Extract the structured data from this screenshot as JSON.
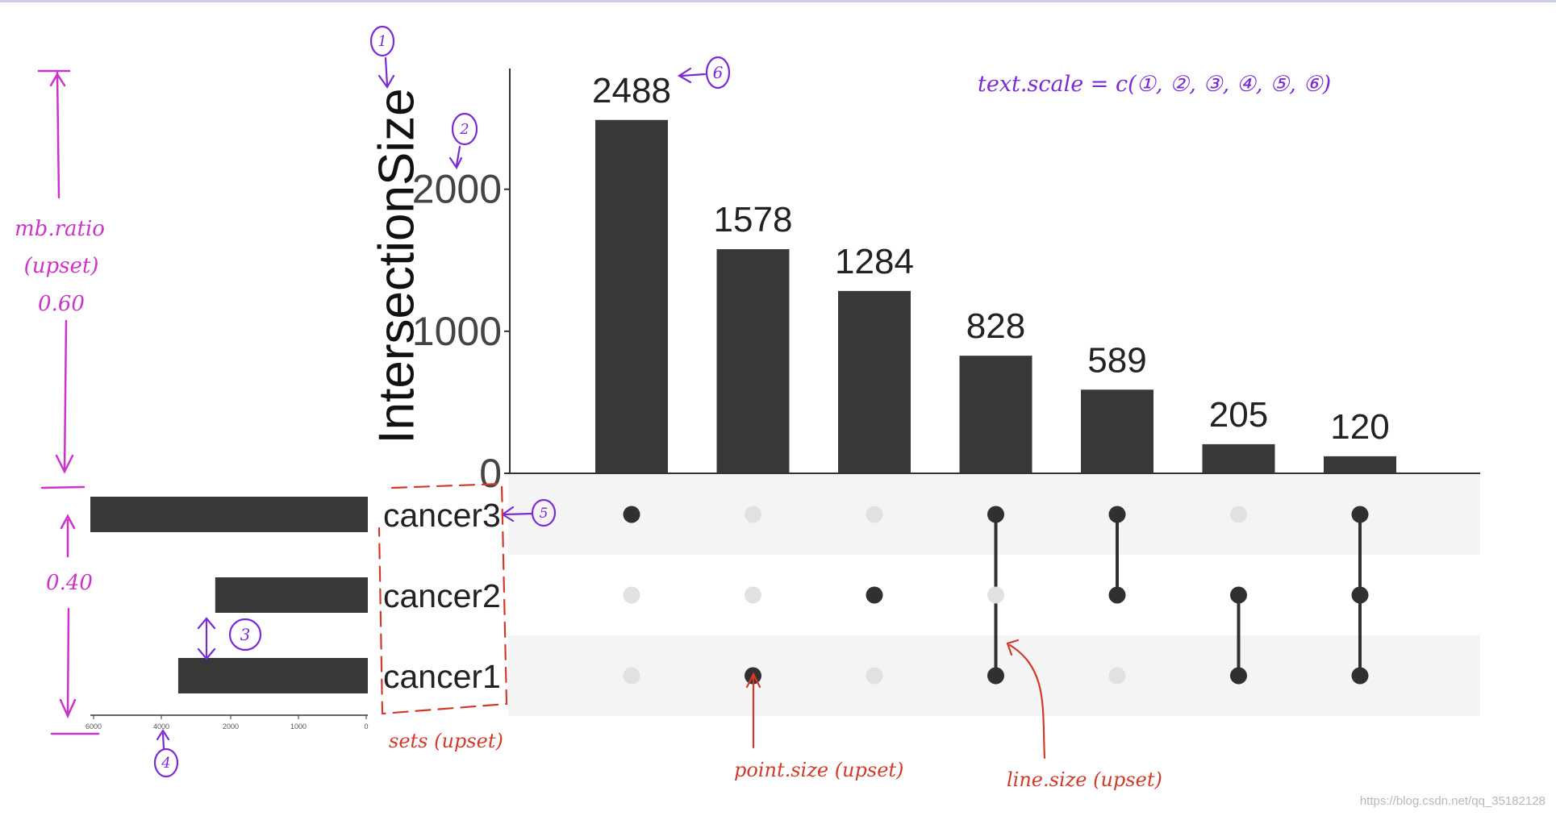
{
  "chart_data": {
    "type": "upset",
    "intersection_bars": {
      "ylabel": "IntersectionSize",
      "yticks": [
        0,
        1000,
        2000
      ],
      "ylim": [
        0,
        2850
      ],
      "values": [
        2488,
        1578,
        1284,
        828,
        589,
        205,
        120
      ],
      "value_labels": [
        "2488",
        "1578",
        "1284",
        "828",
        "589",
        "205",
        "120"
      ]
    },
    "sets": {
      "names": [
        "cancer3",
        "cancer2",
        "cancer1"
      ],
      "sizes": [
        6000,
        3300,
        4100
      ],
      "xticks_labels": [
        "6000",
        "4000",
        "2000",
        "1000",
        "0"
      ],
      "xlim": [
        0,
        6000
      ]
    },
    "matrix": [
      [
        "cancer3"
      ],
      [
        "cancer1"
      ],
      [
        "cancer2"
      ],
      [
        "cancer3",
        "cancer1"
      ],
      [
        "cancer3",
        "cancer2"
      ],
      [
        "cancer2",
        "cancer1"
      ],
      [
        "cancer3",
        "cancer2",
        "cancer1"
      ]
    ],
    "colors": {
      "bar": "#383838",
      "dot_active": "#303030",
      "dot_inactive": "#e1e1e1",
      "stripe": "#f4f4f4"
    }
  },
  "annotations": {
    "marker_1": "1",
    "marker_2": "2",
    "marker_3": "3",
    "marker_4": "4",
    "marker_5": "5",
    "marker_6": "6",
    "mb_ratio_title": "mb.ratio",
    "mb_ratio_sub": "(upset)",
    "mb_ratio_top": "0.60",
    "mb_ratio_bottom": "0.40",
    "text_scale": "text.scale = c(①, ②, ③, ④, ⑤, ⑥)",
    "sets_label": "sets (upset)",
    "point_size_label": "point.size (upset)",
    "line_size_label": "line.size (upset)",
    "colors": {
      "purple": "#cc33cc",
      "violet": "#7a2bd4",
      "red": "#d13a2a"
    }
  },
  "watermark": "https://blog.csdn.net/qq_35182128"
}
